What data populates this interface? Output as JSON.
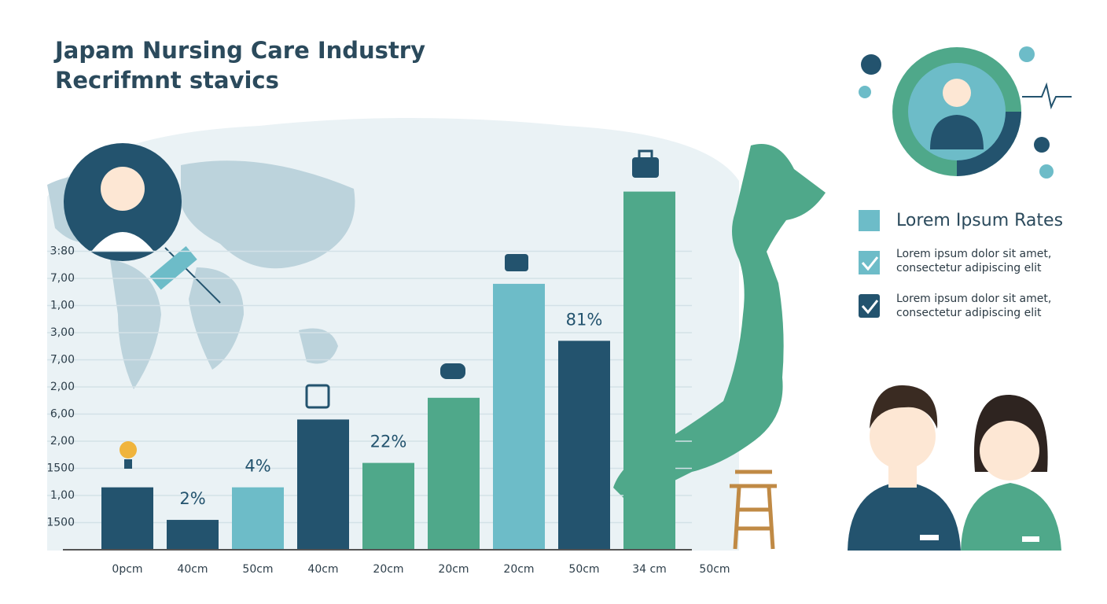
{
  "chart_data": {
    "type": "bar",
    "title": "Japam Nursing Care Industry",
    "subtitle": "Recrifmnt stavics",
    "categories": [
      "0pcm",
      "40cm",
      "50cm",
      "40cm",
      "20cm",
      "20cm",
      "20cm",
      "50cm",
      "34 cm",
      "50cm"
    ],
    "values": [
      2.3,
      1.1,
      2.3,
      4.8,
      3.2,
      5.6,
      9.8,
      7.7,
      13.2,
      null
    ],
    "colors": [
      "#23536e",
      "#23536e",
      "#6dbcc8",
      "#23536e",
      "#4fa88a",
      "#4fa88a",
      "#6dbcc8",
      "#23536e",
      "#4fa88a",
      "#4fa88a"
    ],
    "ylim": [
      0,
      14
    ],
    "yticks": [
      {
        "value": 1,
        "label": "1500"
      },
      {
        "value": 2,
        "label": "1,00"
      },
      {
        "value": 3,
        "label": "1500"
      },
      {
        "value": 4,
        "label": "2,00"
      },
      {
        "value": 5,
        "label": "6,00"
      },
      {
        "value": 6,
        "label": "2,00"
      },
      {
        "value": 7,
        "label": "7,00"
      },
      {
        "value": 8,
        "label": "3,00"
      },
      {
        "value": 9,
        "label": "1,00"
      },
      {
        "value": 10,
        "label": "7,00"
      },
      {
        "value": 11,
        "label": "3:80"
      }
    ],
    "grid": true,
    "annotations": [
      "2%",
      "4%",
      "22%",
      "81%"
    ]
  },
  "legend": {
    "title": "Lorem Ipsum Rates",
    "items": [
      [
        "Lorem ipsum dolor sit amet,",
        "consectetur adipiscing elit"
      ],
      [
        "Lorem ipsum dolor sit amet,",
        "consectetur adipiscing elit"
      ]
    ]
  }
}
